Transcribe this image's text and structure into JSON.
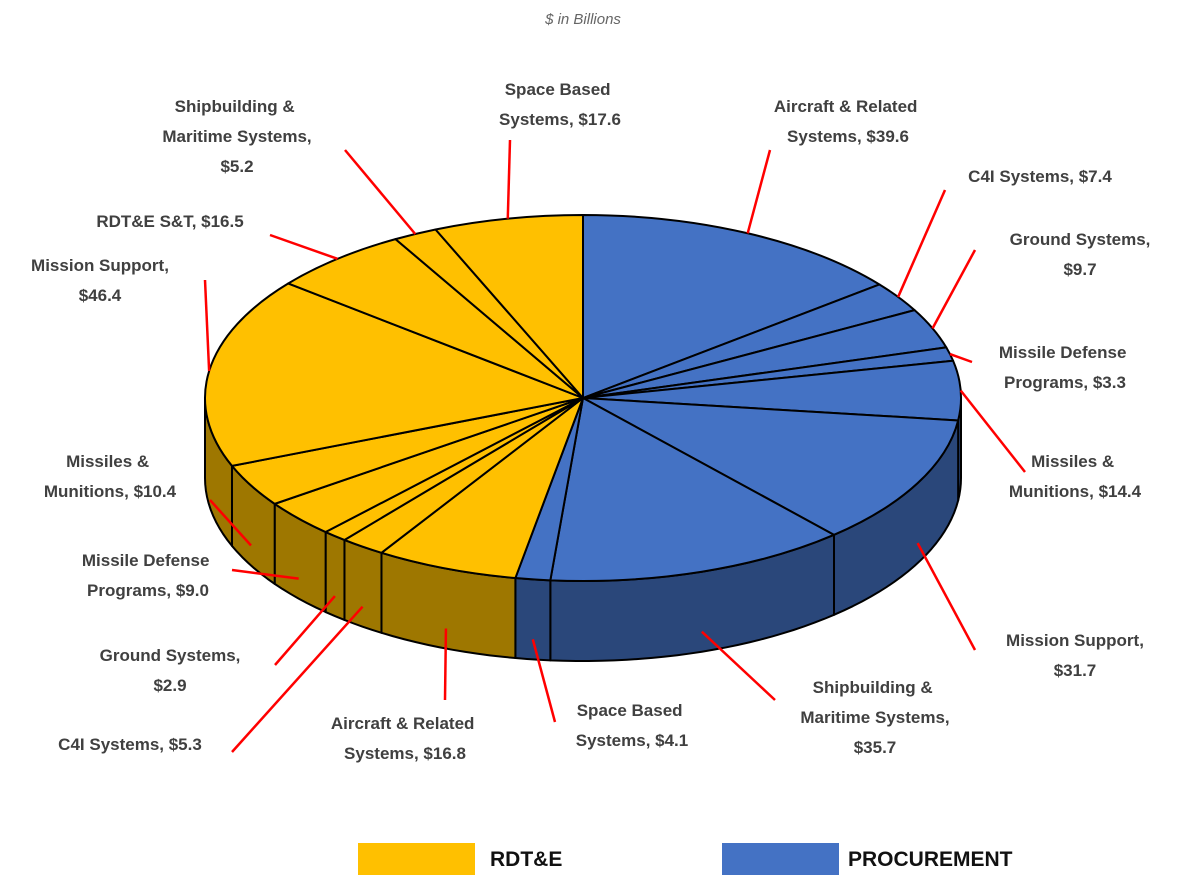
{
  "chart_data": {
    "type": "pie3d",
    "subtitle": "$ in Billions",
    "series": [
      {
        "name": "PROCUREMENT",
        "color": "#4472C4",
        "categories": [
          "Aircraft & Related Systems,",
          "C4I Systems,",
          "Ground Systems,",
          "Missile Defense Programs,",
          "Missiles & Munitions,",
          "Mission Support,",
          "Shipbuilding & Maritime Systems,",
          "Space Based Systems,"
        ],
        "values": [
          39.6,
          7.4,
          9.7,
          3.3,
          14.4,
          31.7,
          35.7,
          4.1
        ],
        "value_labels": [
          "$39.6",
          "$7.4",
          "$9.7",
          "$3.3",
          "$14.4",
          "$31.7",
          "$35.7",
          "$4.1"
        ]
      },
      {
        "name": "RDT&E",
        "color": "#FFC000",
        "categories": [
          "Aircraft & Related Systems,",
          "C4I Systems,",
          "Ground Systems,",
          "Missile Defense Programs,",
          "Missiles & Munitions,",
          "Mission Support,",
          "RDT&E S&T,",
          "Shipbuilding & Maritime Systems,",
          "Space Based Systems,"
        ],
        "values": [
          16.8,
          5.3,
          2.9,
          9.0,
          10.4,
          46.4,
          16.5,
          5.2,
          17.6
        ],
        "value_labels": [
          "$16.8",
          "$5.3",
          "$2.9",
          "$9.0",
          "$10.4",
          "$46.4",
          "$16.5",
          "$5.2",
          "$17.6"
        ]
      }
    ]
  }
}
